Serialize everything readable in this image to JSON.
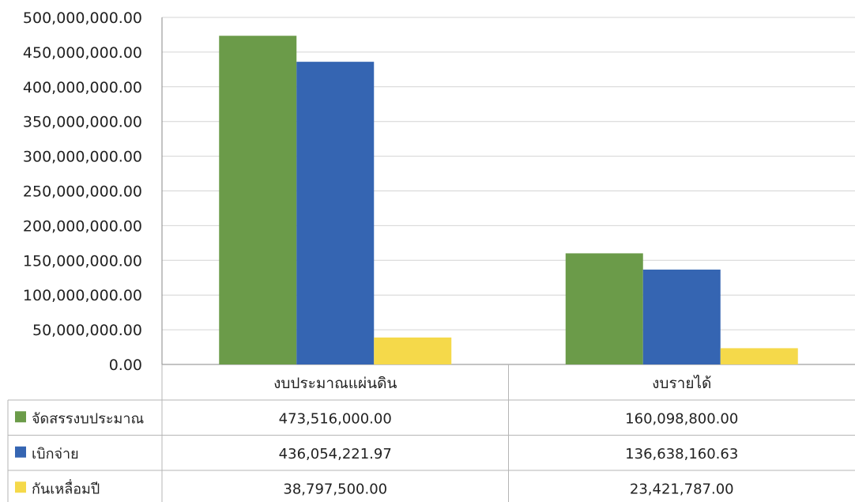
{
  "chart_data": {
    "type": "bar",
    "categories": [
      "งบประมาณแผ่นดิน",
      "งบรายได้"
    ],
    "series": [
      {
        "name": "จัดสรรงบประมาณ",
        "color": "#6b9b49",
        "values": [
          473516000.0,
          160098800.0
        ],
        "labels": [
          "473,516,000.00",
          "160,098,800.00"
        ]
      },
      {
        "name": "เบิกจ่าย",
        "color": "#3565b2",
        "values": [
          436054221.97,
          136638160.63
        ],
        "labels": [
          "436,054,221.97",
          "136,638,160.63"
        ]
      },
      {
        "name": "กันเหลื่อมปี",
        "color": "#f5d94a",
        "values": [
          38797500.0,
          23421787.0
        ],
        "labels": [
          "38,797,500.00",
          "23,421,787.00"
        ]
      }
    ],
    "yticks": [
      "0.00",
      "50,000,000.00",
      "100,000,000.00",
      "150,000,000.00",
      "200,000,000.00",
      "250,000,000.00",
      "300,000,000.00",
      "350,000,000.00",
      "400,000,000.00",
      "450,000,000.00",
      "500,000,000.00"
    ],
    "ylim": [
      0,
      500000000
    ],
    "grid": true,
    "legend": "data-table"
  }
}
